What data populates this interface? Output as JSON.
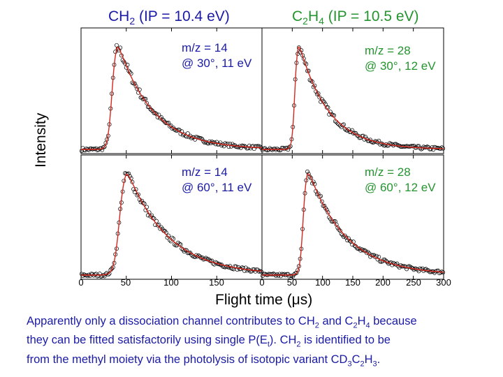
{
  "chart_data": [
    {
      "type": "scatter",
      "panel": "top-left",
      "species": "CH2",
      "header": "CH2 (IP = 10.4 eV)",
      "annotation": [
        "m/z = 14",
        "@ 30°, 11 eV"
      ],
      "xlim": [
        0,
        200
      ],
      "x_ticks": [
        "0",
        "50",
        "100",
        "150"
      ],
      "peak_time": 40,
      "rise_width": 10,
      "decay": 38,
      "series": [
        {
          "name": "data",
          "style": "open circles"
        },
        {
          "name": "fit",
          "style": "red line"
        }
      ]
    },
    {
      "type": "scatter",
      "panel": "top-right",
      "species": "C2H4",
      "header": "C2H4 (IP = 10.5 eV)",
      "annotation": [
        "m/z = 28",
        "@ 30°, 12 eV"
      ],
      "xlim": [
        0,
        300
      ],
      "x_ticks": [
        "0",
        "50",
        "100",
        "150",
        "200",
        "250",
        "300"
      ],
      "peak_time": 60,
      "rise_width": 10,
      "decay": 48,
      "series": [
        {
          "name": "data",
          "style": "open circles"
        },
        {
          "name": "fit",
          "style": "red line"
        }
      ]
    },
    {
      "type": "scatter",
      "panel": "bottom-left",
      "species": "CH2",
      "annotation": [
        "m/z = 14",
        "@ 60°, 11 eV"
      ],
      "xlim": [
        0,
        200
      ],
      "x_ticks": [
        "0",
        "50",
        "100",
        "150"
      ],
      "peak_time": 50,
      "rise_width": 13,
      "decay": 45,
      "series": [
        {
          "name": "data",
          "style": "open circles"
        },
        {
          "name": "fit",
          "style": "red line"
        }
      ]
    },
    {
      "type": "scatter",
      "panel": "bottom-right",
      "species": "C2H4",
      "annotation": [
        "m/z = 28",
        "@ 60°, 12 eV"
      ],
      "xlim": [
        0,
        300
      ],
      "x_ticks": [
        "0",
        "50",
        "100",
        "150",
        "200",
        "250",
        "300"
      ],
      "peak_time": 75,
      "rise_width": 12,
      "decay": 62,
      "series": [
        {
          "name": "data",
          "style": "open circles"
        },
        {
          "name": "fit",
          "style": "red line"
        }
      ]
    }
  ],
  "axis": {
    "xlabel": "Flight time (μs)",
    "ylabel": "Intensity",
    "bottom_ticks_left": [
      "0",
      "50",
      "100",
      "150"
    ],
    "bottom_ticks_right": [
      "0",
      "50",
      "100",
      "150",
      "200",
      "250",
      "300"
    ]
  },
  "titles": {
    "left": {
      "pre": "CH",
      "sub": "2",
      "post": " (IP = 10.4 eV)"
    },
    "right": {
      "pre": "C",
      "sub": "2",
      "mid": "H",
      "sub2": "4",
      "post": " (IP = 10.5 eV)"
    }
  },
  "annotations": {
    "tl_1": "m/z = 14",
    "tl_2": "@ 30°, 11 eV",
    "tr_1": "m/z = 28",
    "tr_2": "@ 30°, 12 eV",
    "bl_1": "m/z = 14",
    "bl_2": "@ 60°, 11 eV",
    "br_1": "m/z = 28",
    "br_2": "@ 60°, 12 eV"
  },
  "caption": {
    "l1_a": "Apparently only a dissociation channel contributes to CH",
    "l1_b": "2",
    "l1_c": " and C",
    "l1_d": "2",
    "l1_e": "H",
    "l1_f": "4",
    "l1_g": " because",
    "l2_a": "they can be fitted satisfactorily using single P(E",
    "l2_b": "t",
    "l2_c": ").  CH",
    "l2_d": "2",
    "l2_e": " is identified to be",
    "l3_a": "from the methyl moiety via the photolysis of isotopic variant CD",
    "l3_b": "3",
    "l3_c": "C",
    "l3_d": "2",
    "l3_e": "H",
    "l3_f": "3",
    "l3_g": "."
  },
  "colors": {
    "title_blue": "#1a1aa6",
    "title_green": "#23942e",
    "fit_red": "#d9261c",
    "markers": "#000000"
  }
}
